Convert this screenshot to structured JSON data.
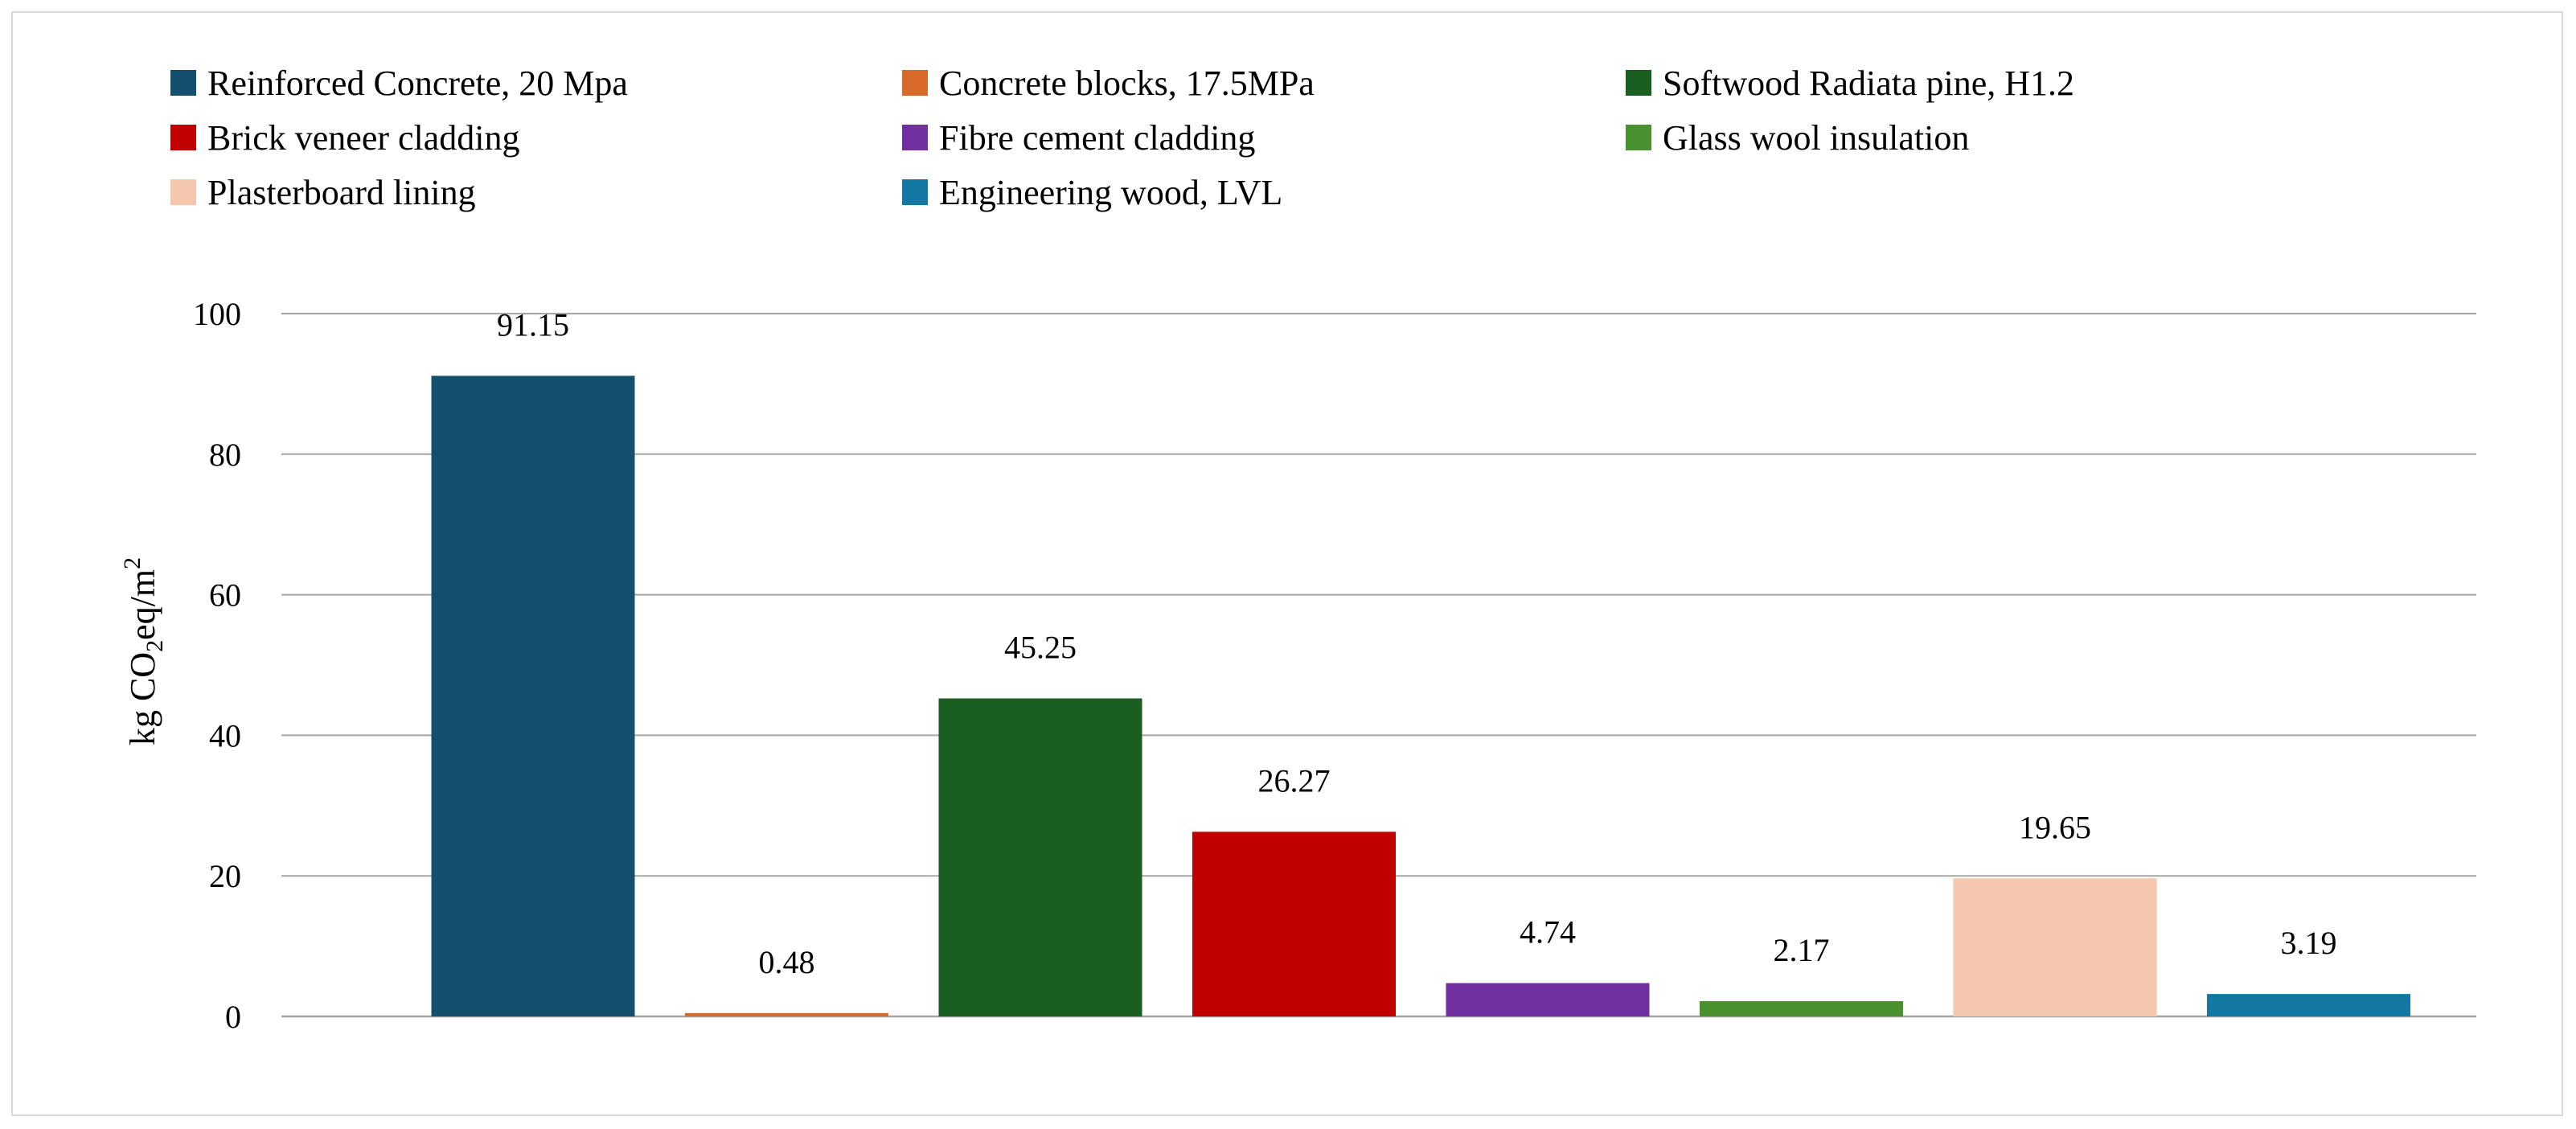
{
  "chart_data": {
    "type": "bar",
    "title": "",
    "xlabel": "",
    "ylabel": {
      "prefix": "kg CO",
      "sub": "2",
      "middle": "eq/m",
      "sup": "2"
    },
    "ylim": [
      0,
      100
    ],
    "yticks": [
      "0",
      "20",
      "40",
      "60",
      "80",
      "100"
    ],
    "grid": true,
    "legend_position": "top",
    "series": [
      {
        "name": "Reinforced Concrete, 20 Mpa",
        "value": 91.15,
        "label": "91.15",
        "color": "#13506e"
      },
      {
        "name": "Concrete blocks, 17.5MPa",
        "value": 0.48,
        "label": "0.48",
        "color": "#d9692a"
      },
      {
        "name": "Softwood Radiata pine, H1.2",
        "value": 45.25,
        "label": "45.25",
        "color": "#1a5e22"
      },
      {
        "name": "Brick veneer cladding",
        "value": 26.27,
        "label": "26.27",
        "color": "#c00000"
      },
      {
        "name": "Fibre cement cladding",
        "value": 4.74,
        "label": "4.74",
        "color": "#7030a0"
      },
      {
        "name": "Glass wool insulation",
        "value": 2.17,
        "label": "2.17",
        "color": "#4a9130"
      },
      {
        "name": "Plasterboard lining",
        "value": 19.65,
        "label": "19.65",
        "color": "#f4c7ae"
      },
      {
        "name": "Engineering wood, LVL",
        "value": 3.19,
        "label": "3.19",
        "color": "#1377a3"
      }
    ]
  }
}
